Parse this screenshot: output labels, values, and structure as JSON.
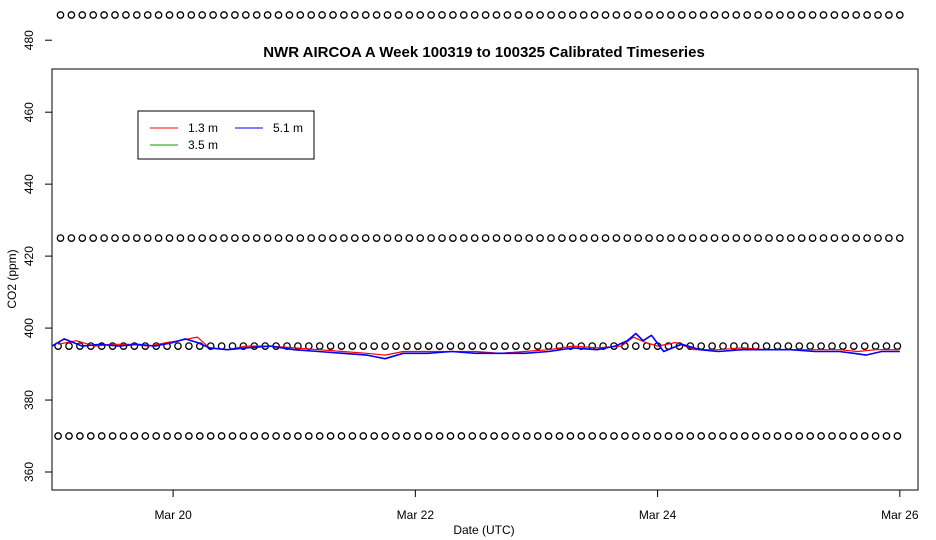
{
  "chart_data": {
    "type": "line",
    "title": "NWR AIRCOA A  Week 100319 to 100325  Calibrated Timeseries",
    "xlabel": "Date (UTC)",
    "ylabel": "CO2 (ppm)",
    "xlim": [
      19.0,
      26.15
    ],
    "ylim": [
      355,
      472
    ],
    "x_ticks": [
      {
        "value": 20,
        "label": "Mar 20"
      },
      {
        "value": 22,
        "label": "Mar 22"
      },
      {
        "value": 24,
        "label": "Mar 24"
      },
      {
        "value": 26,
        "label": "Mar 26"
      }
    ],
    "y_ticks": [
      360,
      380,
      400,
      420,
      440,
      460,
      480
    ],
    "legend": {
      "placement": "top-left",
      "entries": [
        {
          "label": "1.3 m",
          "color": "#ff0000"
        },
        {
          "label": "5.1 m",
          "color": "#0000ff"
        },
        {
          "label": "3.5 m",
          "color": "#00a000"
        }
      ]
    },
    "calibration_levels": [
      {
        "value": 487,
        "x_start": 19.07,
        "x_end": 26.0
      },
      {
        "value": 425,
        "x_start": 19.07,
        "x_end": 26.0
      },
      {
        "value": 395,
        "x_start": 19.05,
        "x_end": 26.0
      },
      {
        "value": 370,
        "x_start": 19.05,
        "x_end": 26.0
      }
    ],
    "calibration_spacing_days": 0.09,
    "series": [
      {
        "name": "1.3 m",
        "color": "#ff0000",
        "x": [
          19.05,
          19.2,
          19.35,
          19.5,
          19.65,
          19.8,
          19.95,
          20.05,
          20.2,
          20.3,
          20.45,
          20.6,
          20.8,
          21.0,
          21.2,
          21.4,
          21.6,
          21.75,
          21.9,
          22.1,
          22.3,
          22.5,
          22.7,
          22.9,
          23.1,
          23.3,
          23.5,
          23.7,
          23.8,
          23.9,
          24.0,
          24.15,
          24.3,
          24.5,
          24.7,
          24.9,
          25.1,
          25.3,
          25.5,
          25.65,
          25.8,
          26.0
        ],
        "y": [
          395.5,
          396.5,
          395.0,
          395.5,
          395.5,
          395.0,
          396.0,
          396.5,
          397.5,
          394.5,
          394.0,
          395.0,
          395.0,
          394.5,
          394.0,
          393.5,
          393.0,
          392.5,
          393.5,
          393.5,
          393.5,
          393.5,
          393.0,
          393.5,
          394.0,
          395.0,
          394.5,
          395.0,
          397.5,
          396.0,
          395.0,
          396.0,
          394.0,
          394.0,
          394.5,
          394.0,
          394.0,
          394.0,
          394.0,
          393.5,
          394.0,
          394.0
        ]
      },
      {
        "name": "5.1 m",
        "color": "#0000ff",
        "x": [
          19.0,
          19.1,
          19.25,
          19.4,
          19.55,
          19.7,
          19.85,
          20.0,
          20.1,
          20.2,
          20.3,
          20.45,
          20.6,
          20.8,
          21.0,
          21.2,
          21.4,
          21.6,
          21.75,
          21.9,
          22.1,
          22.3,
          22.5,
          22.7,
          22.9,
          23.1,
          23.3,
          23.5,
          23.65,
          23.75,
          23.82,
          23.88,
          23.95,
          24.05,
          24.2,
          24.35,
          24.5,
          24.7,
          24.9,
          25.1,
          25.3,
          25.5,
          25.62,
          25.72,
          25.85,
          26.0
        ],
        "y": [
          395.0,
          397.0,
          395.0,
          395.5,
          395.0,
          395.5,
          395.0,
          396.0,
          397.0,
          396.0,
          394.5,
          394.0,
          394.5,
          395.0,
          394.0,
          393.5,
          393.0,
          392.5,
          391.5,
          393.0,
          393.0,
          393.5,
          393.0,
          393.0,
          393.0,
          393.5,
          394.5,
          394.0,
          395.0,
          396.5,
          398.5,
          396.5,
          398.0,
          393.5,
          395.5,
          394.0,
          393.5,
          394.0,
          394.0,
          394.0,
          393.5,
          393.5,
          393.0,
          392.5,
          393.5,
          393.5
        ]
      }
    ]
  }
}
